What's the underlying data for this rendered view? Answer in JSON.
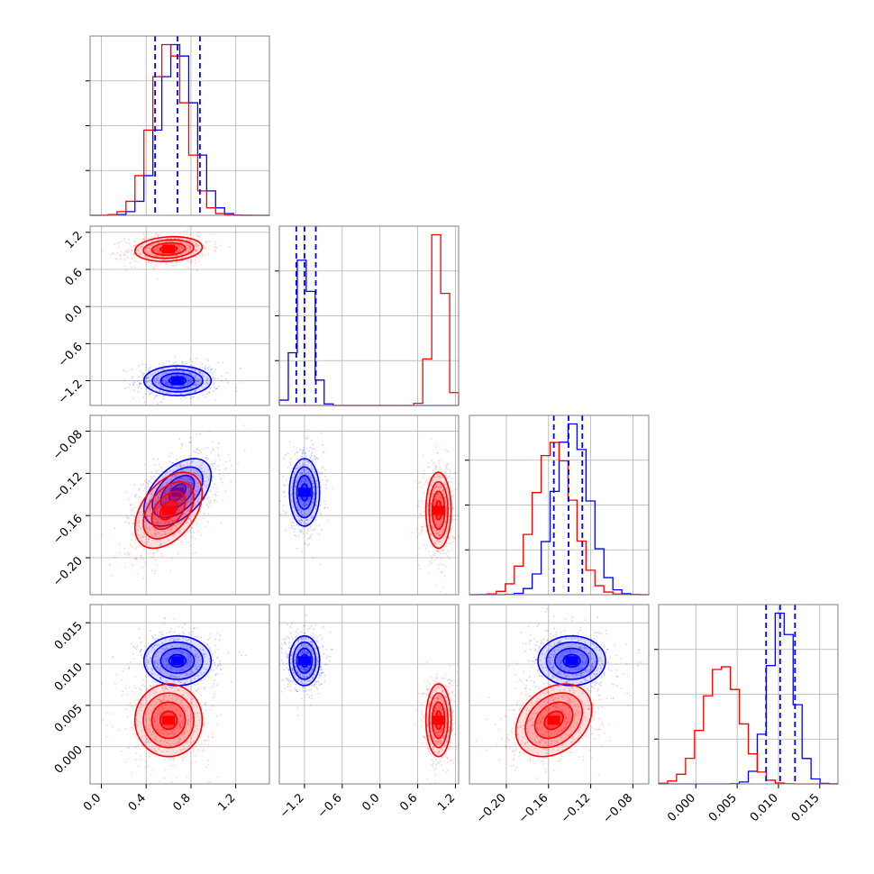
{
  "chart_data": {
    "type": "corner",
    "colors": {
      "blue": "#0000ff",
      "red": "#ff0000"
    },
    "series": [
      {
        "color": "blue",
        "means": [
          0.68,
          -1.2,
          -0.138,
          0.0104
        ],
        "sds": [
          0.15,
          0.12,
          0.016,
          0.0015
        ],
        "corr": [
          [
            1,
            0,
            0.5,
            0
          ],
          [
            0,
            1,
            0,
            0
          ],
          [
            0.5,
            0,
            1,
            0
          ],
          [
            0,
            0,
            0,
            1
          ]
        ]
      },
      {
        "color": "red",
        "means": [
          0.6,
          0.93,
          -0.155,
          0.0032
        ],
        "sds": [
          0.15,
          0.1,
          0.018,
          0.0022
        ],
        "corr": [
          [
            1,
            0.15,
            0.45,
            0
          ],
          [
            0.15,
            1,
            0,
            0
          ],
          [
            0.45,
            0,
            1,
            0.3
          ],
          [
            0,
            0,
            0.3,
            1
          ]
        ]
      }
    ],
    "quantile_lines": [
      {
        "param": 0,
        "values": [
          0.48,
          0.68,
          0.88
        ]
      },
      {
        "param": 1,
        "values": [
          -1.33,
          -1.2,
          -1.02
        ]
      },
      {
        "param": 2,
        "values": [
          -0.155,
          -0.141,
          -0.128
        ]
      },
      {
        "param": 3,
        "values": [
          0.0085,
          0.0102,
          0.012
        ]
      }
    ],
    "params": [
      {
        "range": [
          -0.1,
          1.5
        ],
        "ticks": [
          0.0,
          0.4,
          0.8,
          1.2
        ],
        "tick_labels": [
          "0.0",
          "0.4",
          "0.8",
          "1.2"
        ]
      },
      {
        "range": [
          -1.6,
          1.25
        ],
        "ticks": [
          -1.2,
          -0.6,
          0.0,
          0.6,
          1.2
        ],
        "tick_labels": [
          "−1.2",
          "−0.6",
          "0.0",
          "0.6",
          "1.2"
        ]
      },
      {
        "range": [
          -0.235,
          -0.065
        ],
        "ticks": [
          -0.2,
          -0.16,
          -0.12,
          -0.08
        ],
        "tick_labels": [
          "−0.20",
          "−0.16",
          "−0.12",
          "−0.08"
        ]
      },
      {
        "range": [
          -0.0045,
          0.0172
        ],
        "ticks": [
          0.0,
          0.005,
          0.01,
          0.015
        ],
        "tick_labels": [
          "0.000",
          "0.005",
          "0.010",
          "0.015"
        ]
      }
    ],
    "y_params": [
      {
        "range": [
          -1.6,
          1.3
        ],
        "ticks": [
          -1.2,
          -0.6,
          0.0,
          0.6,
          1.2
        ],
        "tick_labels": [
          "−1.2",
          "−0.6",
          "0.0",
          "0.6",
          "1.2"
        ]
      },
      {
        "range": [
          -0.235,
          -0.065
        ],
        "ticks": [
          -0.2,
          -0.16,
          -0.12,
          -0.08
        ],
        "tick_labels": [
          "−0.20",
          "−0.16",
          "−0.12",
          "−0.08"
        ]
      },
      {
        "range": [
          -0.0045,
          0.0172
        ],
        "ticks": [
          0.0,
          0.005,
          0.01,
          0.015
        ],
        "tick_labels": [
          "0.000",
          "0.005",
          "0.010",
          "0.015"
        ]
      }
    ],
    "grid": true,
    "xlabels": [
      "",
      "",
      "",
      ""
    ],
    "ylabels": [
      "",
      "",
      ""
    ]
  }
}
